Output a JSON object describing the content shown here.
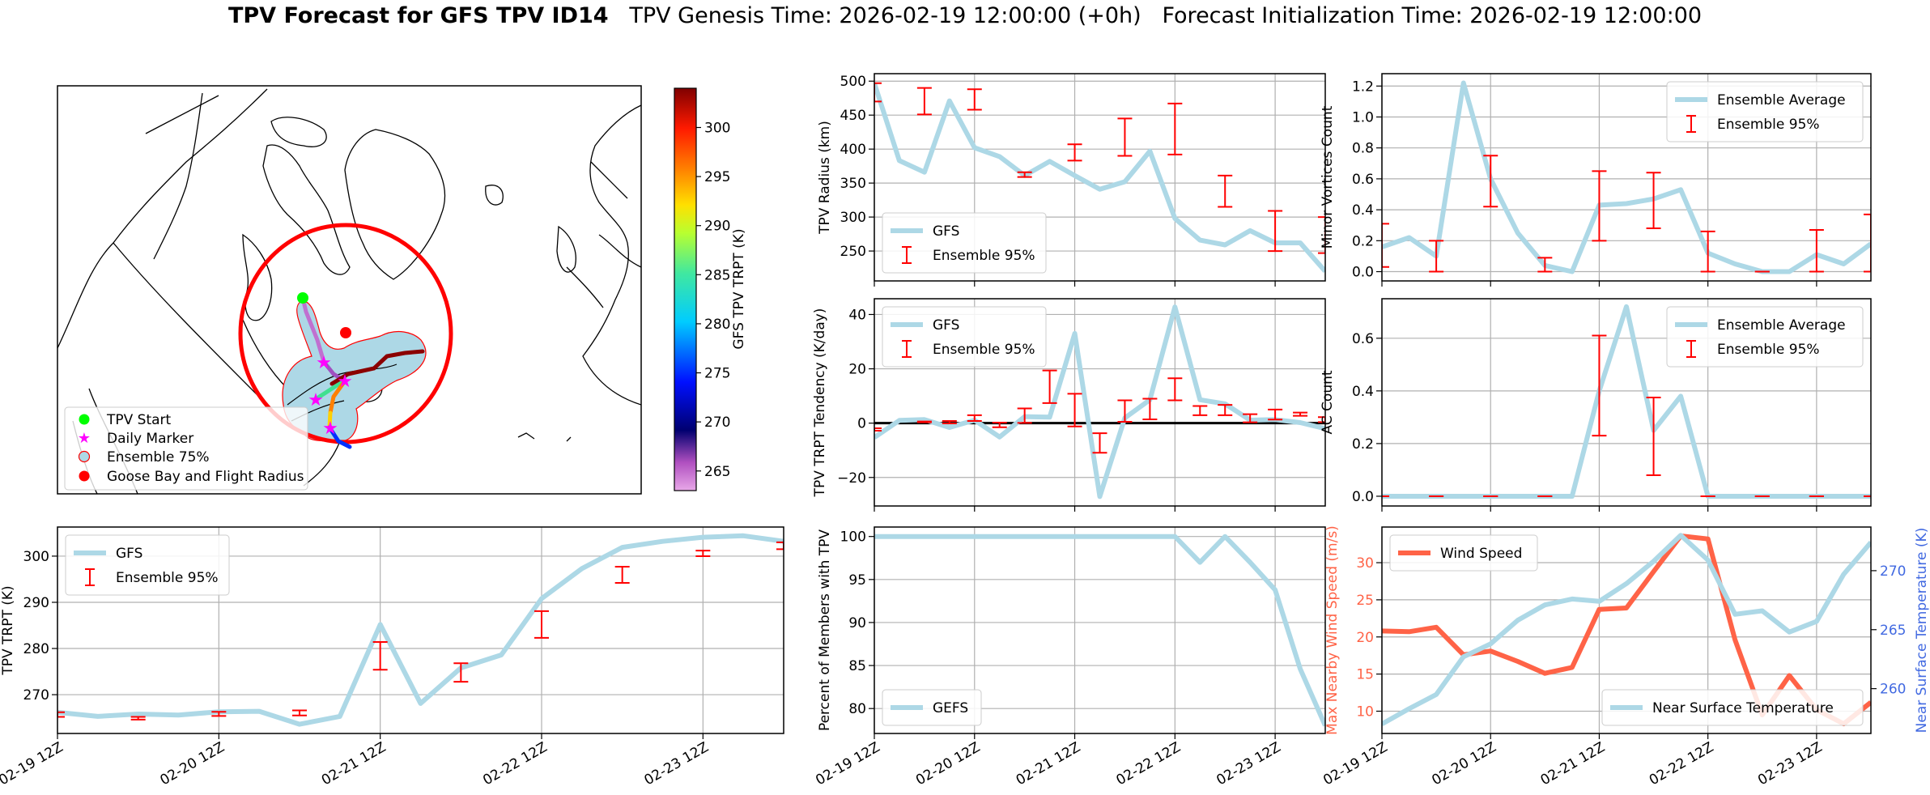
{
  "title": {
    "bold": "TPV Forecast for GFS TPV ID14",
    "genesis": "TPV Genesis Time: 2026-02-19 12:00:00 (+0h)",
    "init": "Forecast Initialization Time: 2026-02-19 12:00:00"
  },
  "times": [
    "02-19 12Z",
    "02-19 18Z",
    "02-20 00Z",
    "02-20 06Z",
    "02-20 12Z",
    "02-20 18Z",
    "02-21 00Z",
    "02-21 06Z",
    "02-21 12Z",
    "02-21 18Z",
    "02-22 00Z",
    "02-22 06Z",
    "02-22 12Z",
    "02-22 18Z",
    "02-23 00Z",
    "02-23 06Z",
    "02-23 12Z",
    "02-23 18Z",
    "02-24 00Z"
  ],
  "xtick_labels": [
    "02-19 12Z",
    "02-20 12Z",
    "02-21 12Z",
    "02-22 12Z",
    "02-23 12Z"
  ],
  "map": {
    "colorbar_label": "GFS TPV TRPT (K)",
    "colorbar_range": [
      263,
      304
    ],
    "colorbar_ticks": [
      "265",
      "270",
      "275",
      "280",
      "285",
      "290",
      "295",
      "300"
    ],
    "colormap": "jet-like with pink/purple low end",
    "legend": [
      {
        "label": "TPV Start",
        "color": "#00ff00",
        "marker": "circle"
      },
      {
        "label": "Daily Marker",
        "color": "#ff00ff",
        "marker": "star"
      },
      {
        "label": "Ensemble 75%",
        "color": "#add8e6",
        "marker": "circle-outlined-red"
      },
      {
        "label": "Goose Bay and Flight Radius",
        "color": "#ff0000",
        "marker": "circle"
      }
    ]
  },
  "chart_data": [
    {
      "type": "line",
      "ylabel": "TPV TRPT (K)",
      "ylim": [
        261.6,
        306.3
      ],
      "yticks": [
        "270",
        "280",
        "290",
        "300"
      ],
      "grid": true,
      "legend": "top-left",
      "show_xlabels": true,
      "series": [
        {
          "name": "GFS",
          "color": "#add8e6",
          "values": [
            266.2,
            265.3,
            265.8,
            265.6,
            266.3,
            266.4,
            263.6,
            265.3,
            285.2,
            268.1,
            275.8,
            278.6,
            290.8,
            297.3,
            301.9,
            303.2,
            304.1,
            304.4,
            303.2
          ]
        }
      ],
      "errorbars": {
        "name": "Ensemble 95%",
        "color": "#ff0000",
        "points": [
          {
            "t": "02-19 12Z",
            "low": 265.2,
            "high": 266.2
          },
          {
            "t": "02-20 00Z",
            "low": 264.6,
            "high": 265.2
          },
          {
            "t": "02-20 12Z",
            "low": 265.4,
            "high": 266.3
          },
          {
            "t": "02-21 00Z",
            "low": 265.5,
            "high": 266.6
          },
          {
            "t": "02-21 12Z",
            "low": 275.4,
            "high": 281.4
          },
          {
            "t": "02-22 00Z",
            "low": 272.8,
            "high": 276.8
          },
          {
            "t": "02-22 12Z",
            "low": 282.3,
            "high": 288.1
          },
          {
            "t": "02-23 00Z",
            "low": 294.2,
            "high": 297.7
          },
          {
            "t": "02-23 12Z",
            "low": 300.0,
            "high": 301.2
          },
          {
            "t": "02-24 00Z",
            "low": 301.5,
            "high": 303.0
          }
        ]
      }
    },
    {
      "type": "line",
      "ylabel": "TPV Radius (km)",
      "ylim": [
        206,
        511
      ],
      "yticks": [
        "250",
        "300",
        "350",
        "400",
        "450",
        "500"
      ],
      "grid": true,
      "legend": "bottom-left",
      "show_xlabels": false,
      "series": [
        {
          "name": "GFS",
          "color": "#add8e6",
          "values": [
            497,
            383,
            366,
            471,
            402,
            389,
            361,
            382,
            361,
            341,
            352,
            397,
            298,
            266,
            259,
            280,
            262,
            262,
            220
          ]
        }
      ],
      "errorbars": {
        "name": "Ensemble 95%",
        "color": "#ff0000",
        "points": [
          {
            "t": "02-19 12Z",
            "low": 470,
            "high": 497
          },
          {
            "t": "02-20 00Z",
            "low": 451,
            "high": 490
          },
          {
            "t": "02-20 12Z",
            "low": 458,
            "high": 488
          },
          {
            "t": "02-21 00Z",
            "low": 359,
            "high": 366
          },
          {
            "t": "02-21 12Z",
            "low": 383,
            "high": 407
          },
          {
            "t": "02-22 00Z",
            "low": 390,
            "high": 445
          },
          {
            "t": "02-22 12Z",
            "low": 392,
            "high": 467
          },
          {
            "t": "02-23 00Z",
            "low": 315,
            "high": 361
          },
          {
            "t": "02-23 12Z",
            "low": 250,
            "high": 309
          },
          {
            "t": "02-24 00Z",
            "low": 247,
            "high": 300
          }
        ]
      }
    },
    {
      "type": "line",
      "ylabel": "TPV TRPT Tendency (K/day)",
      "ylim": [
        -30.5,
        45.8
      ],
      "yticks": [
        "-20",
        "0",
        "20",
        "40"
      ],
      "grid": true,
      "legend": "top-left",
      "show_xlabels": false,
      "hline": 0,
      "series": [
        {
          "name": "GFS",
          "color": "#add8e6",
          "values": [
            -5.3,
            1.0,
            1.3,
            -1.6,
            1.1,
            -5.1,
            2.4,
            2.2,
            33.0,
            -27.0,
            1.9,
            8.6,
            42.8,
            8.6,
            7.1,
            1.1,
            1.3,
            0.2,
            -2.0
          ]
        }
      ],
      "errorbars": {
        "name": "Ensemble 95%",
        "color": "#ff0000",
        "points": [
          {
            "t": "02-19 12Z",
            "low": -2.8,
            "high": -1.9
          },
          {
            "t": "02-20 00Z",
            "low": 0.3,
            "high": 0.6
          },
          {
            "t": "02-20 06Z",
            "low": -0.1,
            "high": 0.8
          },
          {
            "t": "02-20 12Z",
            "low": 0.8,
            "high": 2.9
          },
          {
            "t": "02-20 18Z",
            "low": -1.5,
            "high": 0.2
          },
          {
            "t": "02-21 00Z",
            "low": 0.1,
            "high": 5.4
          },
          {
            "t": "02-21 06Z",
            "low": 7.4,
            "high": 19.4
          },
          {
            "t": "02-21 12Z",
            "low": -1.2,
            "high": 10.8
          },
          {
            "t": "02-21 18Z",
            "low": -10.9,
            "high": -3.7
          },
          {
            "t": "02-22 00Z",
            "low": 0.5,
            "high": 8.4
          },
          {
            "t": "02-22 06Z",
            "low": 1.4,
            "high": 9.0
          },
          {
            "t": "02-22 12Z",
            "low": 8.4,
            "high": 16.5
          },
          {
            "t": "02-22 18Z",
            "low": 2.9,
            "high": 6.3
          },
          {
            "t": "02-23 00Z",
            "low": 2.9,
            "high": 6.7
          },
          {
            "t": "02-23 06Z",
            "low": 0.3,
            "high": 3.3
          },
          {
            "t": "02-23 12Z",
            "low": 1.3,
            "high": 5.0
          },
          {
            "t": "02-23 18Z",
            "low": 2.7,
            "high": 3.9
          },
          {
            "t": "02-24 00Z",
            "low": 0.4,
            "high": 2.2
          }
        ]
      }
    },
    {
      "type": "line",
      "ylabel": "Percent of Members with TPV",
      "ylim": [
        77.1,
        101.1
      ],
      "yticks": [
        "80",
        "85",
        "90",
        "95",
        "100"
      ],
      "grid": true,
      "legend": "bottom-left",
      "show_xlabels": true,
      "series": [
        {
          "name": "GEFS",
          "color": "#add8e6",
          "values": [
            100,
            100,
            100,
            100,
            100,
            100,
            100,
            100,
            100,
            100,
            100,
            100,
            100,
            97,
            100,
            97,
            93.8,
            84.6,
            78
          ]
        }
      ]
    },
    {
      "type": "line",
      "ylabel": "Minor Vortices Count",
      "ylim": [
        -0.06,
        1.28
      ],
      "yticks": [
        "0.0",
        "0.2",
        "0.4",
        "0.6",
        "0.8",
        "1.0",
        "1.2"
      ],
      "grid": true,
      "legend": "top-right",
      "show_xlabels": false,
      "series": [
        {
          "name": "Ensemble Average",
          "color": "#add8e6",
          "values": [
            0.16,
            0.22,
            0.1,
            1.22,
            0.6,
            0.25,
            0.04,
            0.0,
            0.43,
            0.44,
            0.47,
            0.53,
            0.12,
            0.05,
            0.0,
            0.0,
            0.11,
            0.05,
            0.18
          ]
        }
      ],
      "errorbars": {
        "name": "Ensemble 95%",
        "color": "#ff0000",
        "points": [
          {
            "t": "02-19 12Z",
            "low": 0.03,
            "high": 0.31
          },
          {
            "t": "02-20 00Z",
            "low": 0.0,
            "high": 0.2
          },
          {
            "t": "02-20 12Z",
            "low": 0.42,
            "high": 0.75
          },
          {
            "t": "02-21 00Z",
            "low": 0.0,
            "high": 0.09
          },
          {
            "t": "02-21 12Z",
            "low": 0.2,
            "high": 0.65
          },
          {
            "t": "02-22 00Z",
            "low": 0.28,
            "high": 0.64
          },
          {
            "t": "02-22 12Z",
            "low": 0.0,
            "high": 0.26
          },
          {
            "t": "02-23 00Z",
            "low": 0.0,
            "high": 0.0
          },
          {
            "t": "02-23 12Z",
            "low": 0.0,
            "high": 0.27
          },
          {
            "t": "02-24 00Z",
            "low": 0.0,
            "high": 0.37
          }
        ]
      }
    },
    {
      "type": "line",
      "ylabel": "AC Count",
      "ylim": [
        -0.037,
        0.75
      ],
      "yticks": [
        "0.0",
        "0.2",
        "0.4",
        "0.6"
      ],
      "grid": true,
      "legend": "top-right",
      "show_xlabels": false,
      "series": [
        {
          "name": "Ensemble Average",
          "color": "#add8e6",
          "values": [
            0,
            0,
            0,
            0,
            0,
            0,
            0,
            0,
            0.4,
            0.72,
            0.25,
            0.38,
            0,
            0,
            0,
            0,
            0,
            0,
            0
          ]
        }
      ],
      "errorbars": {
        "name": "Ensemble 95%",
        "color": "#ff0000",
        "points": [
          {
            "t": "02-19 12Z",
            "low": 0,
            "high": 0
          },
          {
            "t": "02-20 00Z",
            "low": 0,
            "high": 0
          },
          {
            "t": "02-20 12Z",
            "low": 0,
            "high": 0
          },
          {
            "t": "02-21 00Z",
            "low": 0,
            "high": 0
          },
          {
            "t": "02-21 12Z",
            "low": 0.23,
            "high": 0.61
          },
          {
            "t": "02-22 00Z",
            "low": 0.08,
            "high": 0.375
          },
          {
            "t": "02-22 12Z",
            "low": 0,
            "high": 0
          },
          {
            "t": "02-23 00Z",
            "low": 0,
            "high": 0
          },
          {
            "t": "02-23 12Z",
            "low": 0,
            "high": 0
          },
          {
            "t": "02-24 00Z",
            "low": 0,
            "high": 0
          }
        ]
      }
    },
    {
      "type": "line",
      "ylabel": "Max Nearby Wind Speed (m/s)",
      "ylabel_color": "#ff6347",
      "ylim": [
        7.0,
        34.8
      ],
      "yticks": [
        "10",
        "15",
        "20",
        "25",
        "30"
      ],
      "y2label": "Near Surface Temperature (K)",
      "y2label_color": "#4169e1",
      "y2lim": [
        256.2,
        273.7
      ],
      "y2ticks": [
        "260",
        "265",
        "270"
      ],
      "grid": true,
      "show_xlabels": true,
      "series": [
        {
          "name": "Wind Speed",
          "color": "#ff6347",
          "axis": "left",
          "legend": "top-left",
          "values": [
            20.8,
            20.7,
            21.3,
            17.6,
            18.1,
            16.7,
            15.1,
            15.9,
            23.7,
            23.9,
            28.8,
            33.6,
            33.2,
            19.6,
            9.5,
            14.8,
            10.2,
            8.3,
            11.2
          ]
        },
        {
          "name": "Near Surface Temperature",
          "color": "#add8e6",
          "axis": "right",
          "legend": "bottom-right",
          "values": [
            257.0,
            258.3,
            259.5,
            262.7,
            263.8,
            265.8,
            267.1,
            267.6,
            267.4,
            268.9,
            270.8,
            273.0,
            270.9,
            266.3,
            266.6,
            264.8,
            265.7,
            269.7,
            272.4
          ]
        }
      ]
    }
  ]
}
